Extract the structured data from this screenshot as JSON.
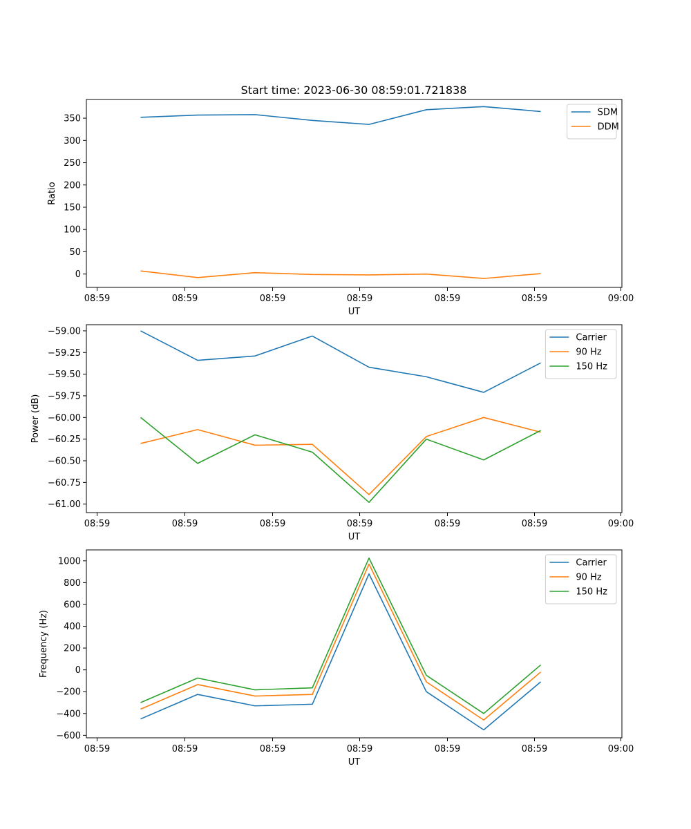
{
  "chart_data": [
    {
      "type": "line",
      "title": "Start time: 2023-06-30 08:59:01.721838",
      "xlabel": "UT",
      "ylabel": "Ratio",
      "x_ticks": [
        "08:59",
        "08:59",
        "08:59",
        "08:59",
        "08:59",
        "08:59",
        "09:00"
      ],
      "ylim": [
        -30,
        392
      ],
      "y_ticks": [
        0,
        50,
        100,
        150,
        200,
        250,
        300,
        350
      ],
      "legend_position": "top-right",
      "series": [
        {
          "name": "SDM",
          "color": "#1f77b4",
          "values": [
            352,
            357,
            358,
            345,
            336,
            369,
            376,
            365
          ]
        },
        {
          "name": "DDM",
          "color": "#ff7f0e",
          "values": [
            7,
            -8,
            3,
            -1,
            -2,
            0,
            -10,
            1
          ]
        }
      ]
    },
    {
      "type": "line",
      "title": "",
      "xlabel": "UT",
      "ylabel": "Power (dB)",
      "x_ticks": [
        "08:59",
        "08:59",
        "08:59",
        "08:59",
        "08:59",
        "08:59",
        "09:00"
      ],
      "ylim": [
        -61.098,
        -58.929
      ],
      "y_ticks": [
        "−61.00",
        "−60.75",
        "−60.50",
        "−60.25",
        "−60.00",
        "−59.75",
        "−59.50",
        "−59.25",
        "−59.00"
      ],
      "y_tick_values": [
        -61.0,
        -60.75,
        -60.5,
        -60.25,
        -60.0,
        -59.75,
        -59.5,
        -59.25,
        -59.0
      ],
      "legend_position": "top-right",
      "series": [
        {
          "name": "Carrier",
          "color": "#1f77b4",
          "values": [
            -59.0,
            -59.34,
            -59.29,
            -59.06,
            -59.42,
            -59.53,
            -59.71,
            -59.37
          ]
        },
        {
          "name": "90 Hz",
          "color": "#ff7f0e",
          "values": [
            -60.3,
            -60.14,
            -60.32,
            -60.31,
            -60.89,
            -60.22,
            -60.0,
            -60.17
          ]
        },
        {
          "name": "150 Hz",
          "color": "#2ca02c",
          "values": [
            -60.0,
            -60.53,
            -60.2,
            -60.4,
            -60.98,
            -60.25,
            -60.49,
            -60.15
          ]
        }
      ]
    },
    {
      "type": "line",
      "title": "",
      "xlabel": "UT",
      "ylabel": "Frequency (Hz)",
      "x_ticks": [
        "08:59",
        "08:59",
        "08:59",
        "08:59",
        "08:59",
        "08:59",
        "09:00"
      ],
      "ylim": [
        -623,
        1100
      ],
      "y_ticks": [
        "−600",
        "−400",
        "−200",
        "0",
        "200",
        "400",
        "600",
        "800",
        "1000"
      ],
      "y_tick_values": [
        -600,
        -400,
        -200,
        0,
        200,
        400,
        600,
        800,
        1000
      ],
      "legend_position": "top-right",
      "series": [
        {
          "name": "Carrier",
          "color": "#1f77b4",
          "values": [
            -450,
            -225,
            -330,
            -315,
            880,
            -200,
            -550,
            -110
          ]
        },
        {
          "name": "90 Hz",
          "color": "#ff7f0e",
          "values": [
            -360,
            -135,
            -240,
            -225,
            970,
            -110,
            -460,
            -20
          ]
        },
        {
          "name": "150 Hz",
          "color": "#2ca02c",
          "values": [
            -300,
            -75,
            -183,
            -165,
            1025,
            -50,
            -400,
            45
          ]
        }
      ]
    }
  ]
}
